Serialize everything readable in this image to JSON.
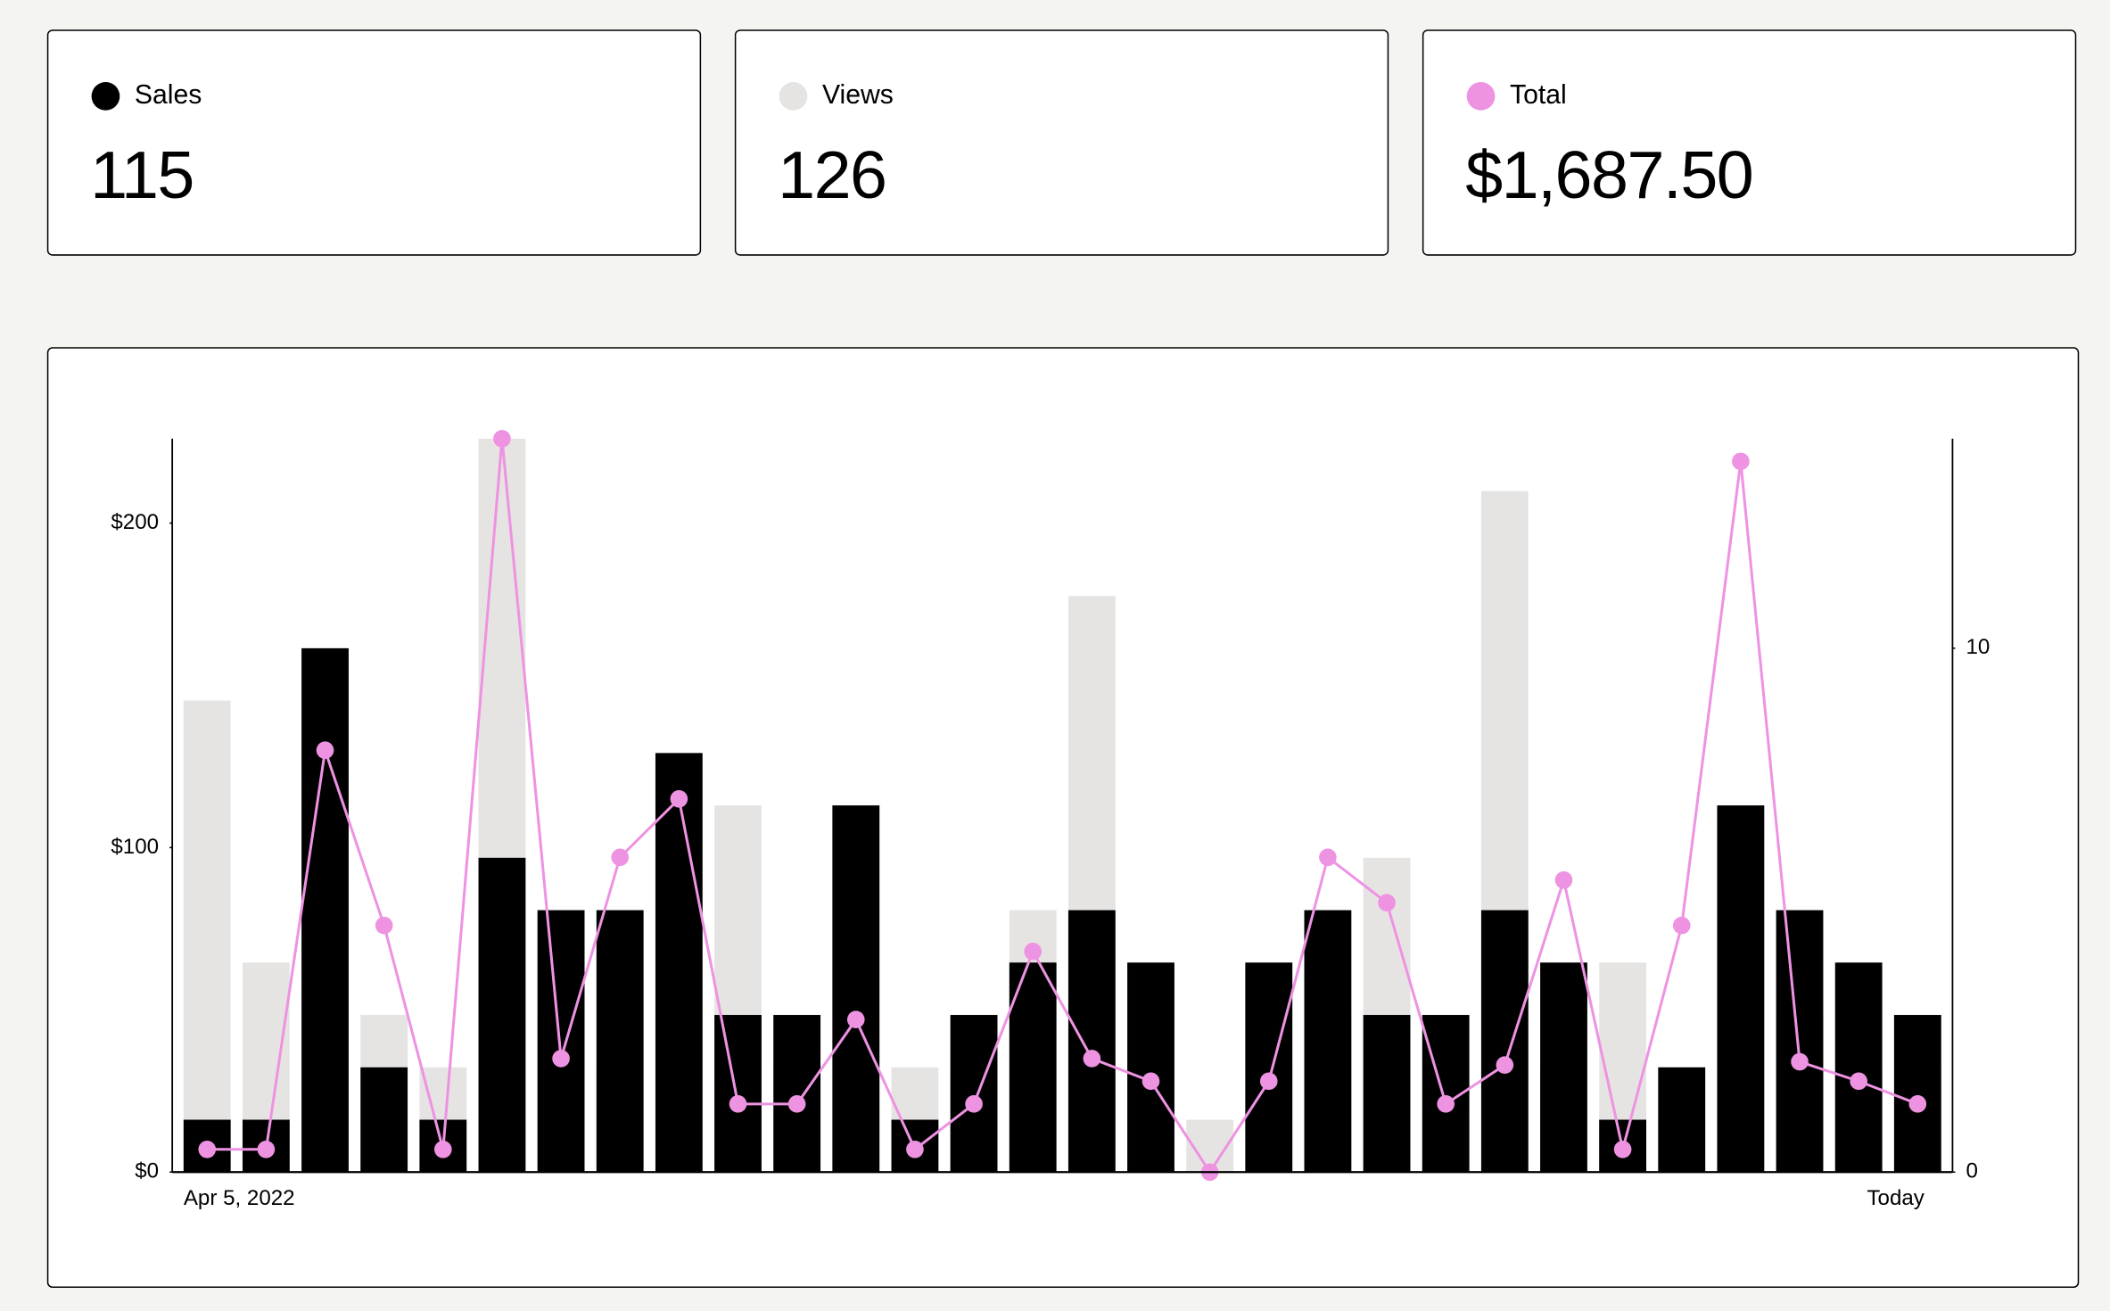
{
  "cards": [
    {
      "series": 0,
      "value": "115"
    },
    {
      "series": 1,
      "value": "126"
    },
    {
      "series": 2,
      "value": "$1,687.50"
    }
  ],
  "chart_data": {
    "type": "combo",
    "categories": [
      "Apr 5, 2022",
      null,
      null,
      null,
      null,
      null,
      null,
      null,
      null,
      null,
      null,
      null,
      null,
      null,
      null,
      null,
      null,
      null,
      null,
      null,
      null,
      null,
      null,
      null,
      null,
      null,
      null,
      null,
      null,
      "Today"
    ],
    "series": [
      {
        "name": "Sales",
        "type": "bar",
        "axis": "y2",
        "color": "#000000",
        "values": [
          1,
          1,
          10,
          2,
          1,
          6,
          5,
          5,
          8,
          3,
          3,
          7,
          1,
          3,
          4,
          5,
          4,
          0,
          4,
          5,
          3,
          3,
          5,
          4,
          1,
          2,
          7,
          5,
          4,
          3
        ]
      },
      {
        "name": "Views",
        "type": "bar",
        "axis": "y2",
        "color": "#e6e4e2",
        "values": [
          9,
          4,
          5,
          3,
          2,
          14,
          3,
          2,
          5,
          7,
          2,
          4,
          2,
          2,
          5,
          11,
          2,
          1,
          2,
          3,
          6,
          1,
          13,
          2,
          4,
          1,
          4,
          3,
          2,
          2
        ]
      },
      {
        "name": "Total",
        "type": "line",
        "axis": "y",
        "color": "#ee92e2",
        "values": [
          7,
          7,
          130,
          76,
          7,
          226,
          35,
          97,
          115,
          21,
          21,
          47,
          7,
          21,
          68,
          35,
          28,
          0,
          28,
          97,
          83,
          21,
          33,
          90,
          7,
          76,
          219,
          34,
          28,
          21
        ]
      }
    ],
    "ylim": [
      0,
      226
    ],
    "yticks": [
      {
        "value": 0,
        "label": "$0"
      },
      {
        "value": 100,
        "label": "$100"
      },
      {
        "value": 200,
        "label": "$200"
      }
    ],
    "y2lim": [
      0,
      14
    ],
    "y2ticks": [
      0,
      10
    ]
  }
}
